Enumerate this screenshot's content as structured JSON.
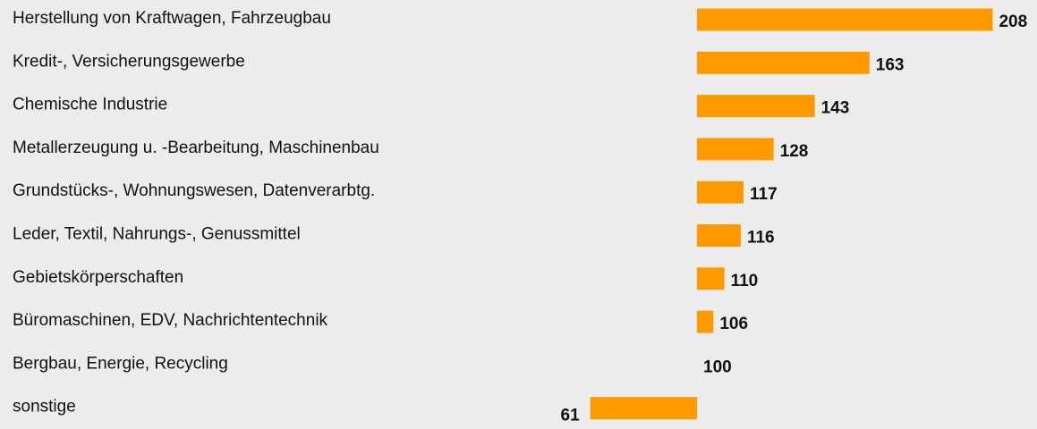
{
  "chart_data": {
    "type": "bar",
    "orientation": "horizontal",
    "baseline": 100,
    "color": "#ff9900",
    "categories": [
      "Herstellung von Kraftwagen, Fahrzeugbau",
      "Kredit-, Versicherungsgewerbe",
      "Chemische  Industrie",
      "Metallerzeugung u. -Bearbeitung, Maschinenbau",
      "Grundstücks-, Wohnungswesen, Datenverarbtg.",
      "Leder, Textil, Nahrungs-, Genussmittel",
      "Gebietskörperschaften",
      "Büromaschinen, EDV, Nachrichtentechnik",
      "Bergbau, Energie, Recycling",
      "sonstige"
    ],
    "values": [
      208,
      163,
      143,
      128,
      117,
      116,
      110,
      106,
      100,
      61
    ]
  }
}
